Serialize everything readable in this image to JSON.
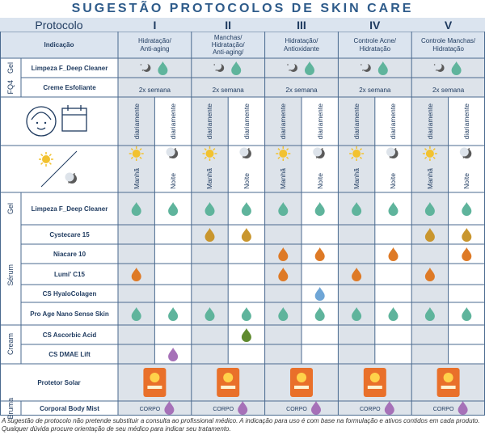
{
  "title": "SUGESTÃO PROTOCOLOS DE SKIN CARE",
  "header": {
    "protocolo": "Protocolo",
    "indicacao": "Indicação",
    "protocols": [
      "I",
      "II",
      "III",
      "IV",
      "V"
    ],
    "indications": [
      "Hidratação/\nAnti-aging",
      "Manchas/\nHidratação/\nAnti-aging/",
      "Hidratação/\nAntioxidante",
      "Controle Acne/\nHidratação",
      "Controle Manchas/\nHidratação"
    ]
  },
  "weekly": {
    "groups": [
      "Gel",
      "FQ4"
    ],
    "products": [
      "Limpeza  F_Deep Cleaner",
      "Creme Esfoliante"
    ],
    "label": "2x semana"
  },
  "frequency": {
    "label": "diariamente",
    "icon": "face-calendar-icon"
  },
  "period": {
    "morning": "Manhã",
    "night": "Noite",
    "icon": "sun-moon-icon"
  },
  "daily_groups": [
    "Gel",
    "Sérum",
    "Cream"
  ],
  "bottom_groups": [
    "Bruma"
  ],
  "products": [
    {
      "name": "Limpeza  F_Deep Cleaner",
      "drops": [
        [
          "teal",
          "teal"
        ],
        [
          "teal",
          "teal"
        ],
        [
          "teal",
          "teal"
        ],
        [
          "teal",
          "teal"
        ],
        [
          "teal",
          "teal"
        ]
      ]
    },
    {
      "name": "Cystecare 15",
      "drops": [
        [
          "",
          ""
        ],
        [
          "gold",
          "gold"
        ],
        [
          "",
          ""
        ],
        [
          "",
          ""
        ],
        [
          "gold",
          "gold"
        ]
      ]
    },
    {
      "name": "Niacare 10",
      "drops": [
        [
          "",
          ""
        ],
        [
          "",
          ""
        ],
        [
          "orange",
          "orange"
        ],
        [
          "",
          "orange"
        ],
        [
          "",
          "orange"
        ]
      ]
    },
    {
      "name": "Lumi' C15",
      "drops": [
        [
          "orange",
          ""
        ],
        [
          "",
          ""
        ],
        [
          "orange",
          ""
        ],
        [
          "orange",
          ""
        ],
        [
          "orange",
          ""
        ]
      ]
    },
    {
      "name": "CS HyaloColagen",
      "drops": [
        [
          "",
          ""
        ],
        [
          "",
          ""
        ],
        [
          "",
          "blue"
        ],
        [
          "",
          ""
        ],
        [
          "",
          ""
        ]
      ]
    },
    {
      "name": "Pro Age Nano Sense Skin",
      "drops": [
        [
          "teal",
          "teal"
        ],
        [
          "teal",
          "teal"
        ],
        [
          "teal",
          "teal"
        ],
        [
          "teal",
          "teal"
        ],
        [
          "teal",
          "teal"
        ]
      ]
    },
    {
      "name": "CS Ascorbic Acid",
      "drops": [
        [
          "",
          ""
        ],
        [
          "",
          "green"
        ],
        [
          "",
          ""
        ],
        [
          "",
          ""
        ],
        [
          "",
          ""
        ]
      ]
    },
    {
      "name": "CS DMAE Lift",
      "drops": [
        [
          "",
          "purple"
        ],
        [
          "",
          ""
        ],
        [
          "",
          ""
        ],
        [
          "",
          ""
        ],
        [
          "",
          ""
        ]
      ]
    }
  ],
  "sunscreen": {
    "name": "Protetor Solar",
    "icon": "sunscreen-tube-icon"
  },
  "mist": {
    "name": "Corporal Body Mist",
    "label": "CORPO"
  },
  "colors": {
    "border": "#4a6a8f",
    "header_bg": "#dbe4ef",
    "shade_bg": "#dde3ea",
    "teal": "#5fb49c",
    "gold": "#c9962e",
    "orange": "#de7a26",
    "blue": "#6fa6d6",
    "green": "#5f8a2e",
    "purple": "#a671b8",
    "sun": "#f2c230",
    "moon": "#5a5a5a",
    "tube": "#e9702a"
  },
  "note": "A sugestão de protocolo não pretende substituir a consulta ao profissional médico. A indicação para uso é com base  na formulação e ativos contidos em cada produto. Qualquer dúvida procure orientação de seu médico para indicar seu tratamento."
}
